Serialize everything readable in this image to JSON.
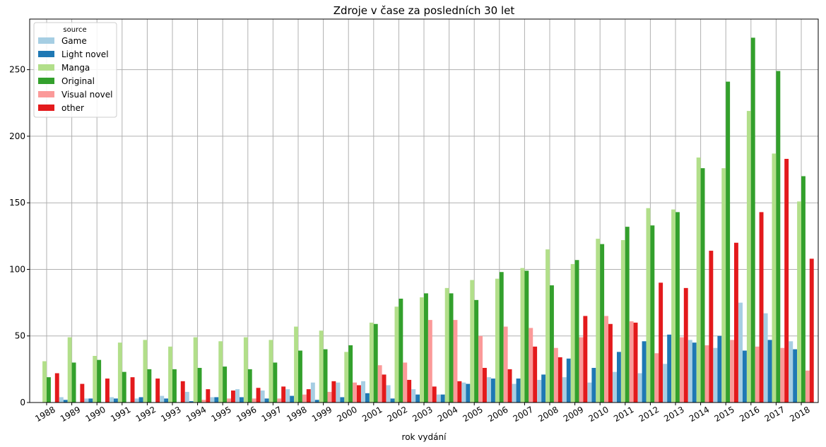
{
  "chart_data": {
    "type": "bar",
    "title": "Zdroje v čase za posledních 30 let",
    "xlabel": "rok vydání",
    "ylabel": "",
    "ylim": [
      0,
      288
    ],
    "yticks": [
      0,
      50,
      100,
      150,
      200,
      250
    ],
    "grid": true,
    "legend": {
      "title": "source",
      "placement": "top-left"
    },
    "categories": [
      "1988",
      "1989",
      "1990",
      "1991",
      "1992",
      "1993",
      "1994",
      "1995",
      "1996",
      "1997",
      "1998",
      "1999",
      "2000",
      "2001",
      "2002",
      "2003",
      "2004",
      "2005",
      "2006",
      "2007",
      "2008",
      "2009",
      "2010",
      "2011",
      "2012",
      "2013",
      "2014",
      "2015",
      "2016",
      "2017",
      "2018"
    ],
    "series": [
      {
        "name": "Game",
        "color": "#a6cee3",
        "values": [
          0,
          4,
          3,
          4,
          3,
          5,
          8,
          4,
          10,
          9,
          10,
          15,
          15,
          16,
          13,
          10,
          6,
          15,
          19,
          14,
          17,
          19,
          15,
          23,
          22,
          29,
          47,
          41,
          75,
          67,
          46
        ]
      },
      {
        "name": "Light novel",
        "color": "#1f78b4",
        "values": [
          0,
          2,
          3,
          3,
          4,
          3,
          1,
          4,
          4,
          3,
          5,
          2,
          4,
          7,
          3,
          6,
          6,
          14,
          18,
          18,
          21,
          33,
          26,
          38,
          46,
          51,
          45,
          50,
          39,
          47,
          40
        ]
      },
      {
        "name": "Manga",
        "color": "#b2df8a",
        "values": [
          31,
          49,
          35,
          45,
          47,
          42,
          49,
          46,
          49,
          47,
          57,
          54,
          38,
          60,
          72,
          79,
          86,
          92,
          93,
          101,
          115,
          104,
          123,
          122,
          146,
          145,
          184,
          176,
          219,
          187,
          151
        ]
      },
      {
        "name": "Original",
        "color": "#33a02c",
        "values": [
          19,
          30,
          32,
          23,
          25,
          25,
          26,
          27,
          25,
          30,
          39,
          40,
          43,
          59,
          78,
          82,
          82,
          77,
          98,
          99,
          88,
          107,
          119,
          132,
          133,
          143,
          176,
          241,
          274,
          249,
          170
        ]
      },
      {
        "name": "Visual novel",
        "color": "#fb9a99",
        "values": [
          0,
          0,
          0,
          0,
          0,
          0,
          2,
          3,
          3,
          3,
          6,
          8,
          15,
          28,
          30,
          62,
          62,
          50,
          57,
          56,
          41,
          49,
          65,
          61,
          37,
          49,
          43,
          47,
          42,
          41,
          24
        ]
      },
      {
        "name": "other",
        "color": "#e31a1c",
        "values": [
          22,
          14,
          18,
          19,
          18,
          16,
          10,
          9,
          11,
          12,
          10,
          16,
          13,
          21,
          17,
          12,
          16,
          26,
          25,
          42,
          34,
          65,
          59,
          60,
          90,
          86,
          114,
          120,
          143,
          183,
          108
        ]
      }
    ]
  }
}
